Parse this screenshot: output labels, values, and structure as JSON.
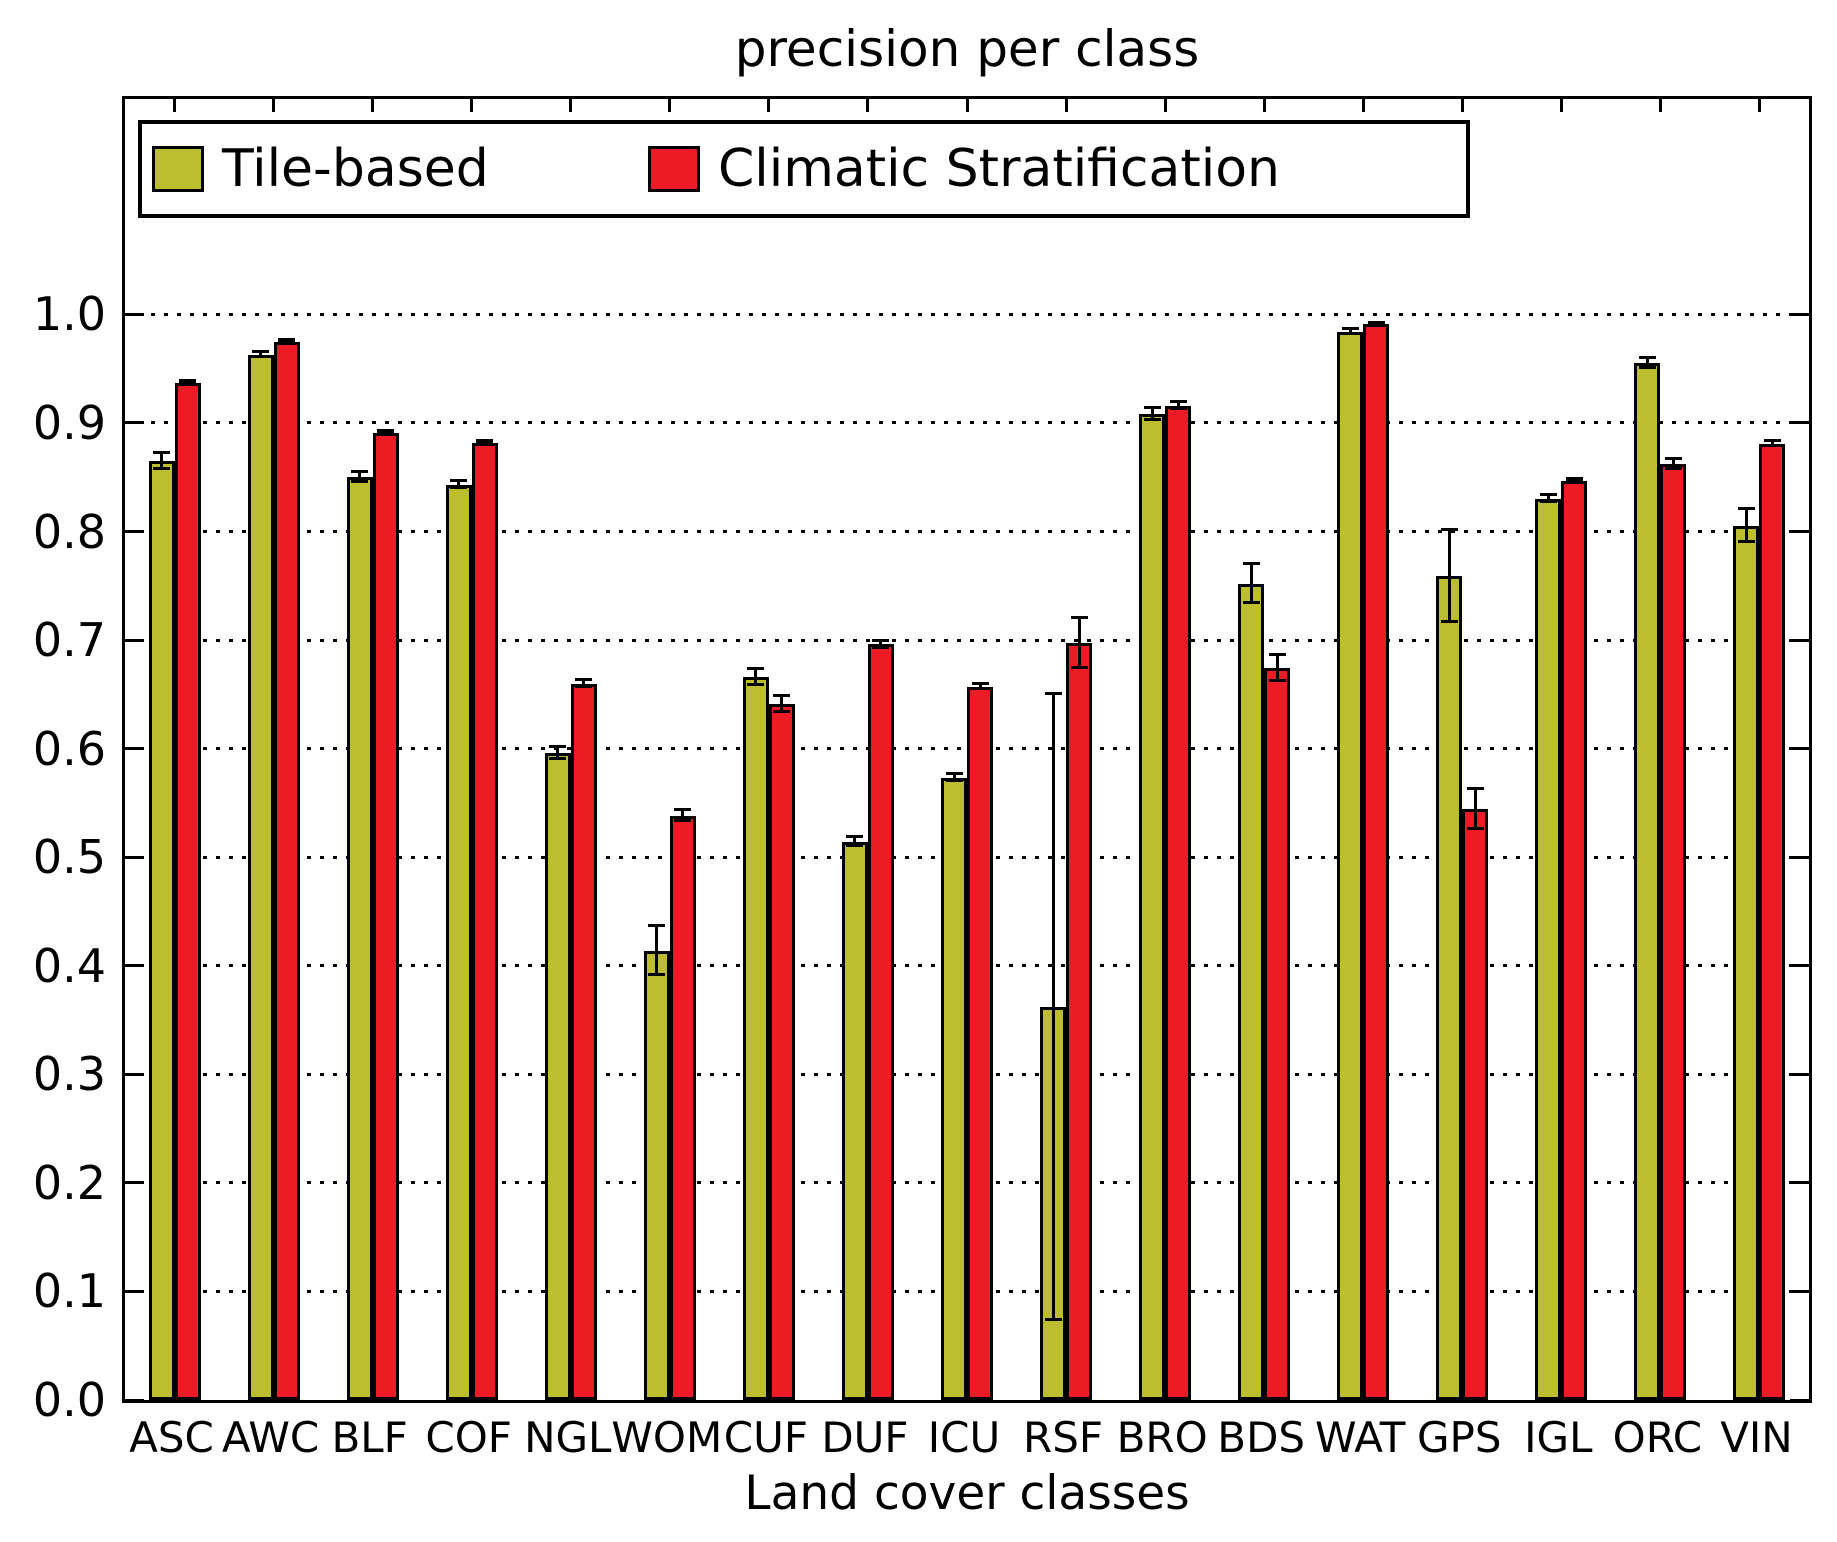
{
  "title": "precision per class",
  "xlabel": "Land cover classes",
  "legend": [
    {
      "label": "Tile-based",
      "color": "#bdbe2f"
    },
    {
      "label": "Climatic Stratification",
      "color": "#ed1c24"
    }
  ],
  "chart_data": {
    "type": "bar",
    "title": "precision per class",
    "xlabel": "Land cover classes",
    "ylabel": "",
    "categories": [
      "ASC",
      "AWC",
      "BLF",
      "COF",
      "NGL",
      "WOM",
      "CUF",
      "DUF",
      "ICU",
      "RSF",
      "BRO",
      "BDS",
      "WAT",
      "GPS",
      "IGL",
      "ORC",
      "VIN"
    ],
    "series": [
      {
        "name": "Tile-based",
        "color": "#bdbe2f",
        "values": [
          0.865,
          0.963,
          0.85,
          0.843,
          0.596,
          0.414,
          0.666,
          0.514,
          0.573,
          0.362,
          0.908,
          0.752,
          0.984,
          0.759,
          0.83,
          0.955,
          0.805
        ],
        "errors": [
          0.008,
          0.003,
          0.005,
          0.004,
          0.006,
          0.023,
          0.008,
          0.005,
          0.004,
          0.289,
          0.006,
          0.019,
          0.003,
          0.043,
          0.004,
          0.005,
          0.016
        ]
      },
      {
        "name": "Climatic Stratification",
        "color": "#ed1c24",
        "values": [
          0.937,
          0.975,
          0.891,
          0.882,
          0.66,
          0.538,
          0.641,
          0.696,
          0.657,
          0.697,
          0.916,
          0.674,
          0.991,
          0.544,
          0.847,
          0.862,
          0.881
        ],
        "errors": [
          0.002,
          0.002,
          0.002,
          0.002,
          0.004,
          0.006,
          0.008,
          0.004,
          0.003,
          0.024,
          0.004,
          0.013,
          0.002,
          0.019,
          0.002,
          0.005,
          0.003
        ]
      }
    ],
    "ylim": [
      0,
      1.2
    ],
    "ytick_labels": [
      "0.0",
      "0.1",
      "0.2",
      "0.3",
      "0.4",
      "0.5",
      "0.6",
      "0.7",
      "0.8",
      "0.9",
      "1.0"
    ],
    "grid": "horizontal-dotted",
    "legend_position": "upper-left-inside",
    "error_bars": true
  }
}
